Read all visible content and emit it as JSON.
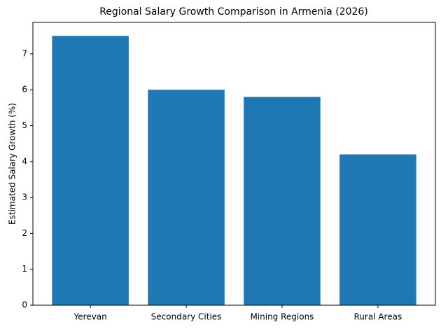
{
  "chart_data": {
    "type": "bar",
    "title": "Regional Salary Growth Comparison in Armenia (2026)",
    "ylabel": "Estimated Salary Growth (%)",
    "categories": [
      "Yerevan",
      "Secondary Cities",
      "Mining Regions",
      "Rural Areas"
    ],
    "values": [
      7.5,
      6.0,
      5.8,
      4.2
    ],
    "color": "#1f77b4",
    "ylim": [
      0,
      7.875
    ],
    "yticks": [
      0,
      1,
      2,
      3,
      4,
      5,
      6,
      7
    ],
    "grid": false
  }
}
